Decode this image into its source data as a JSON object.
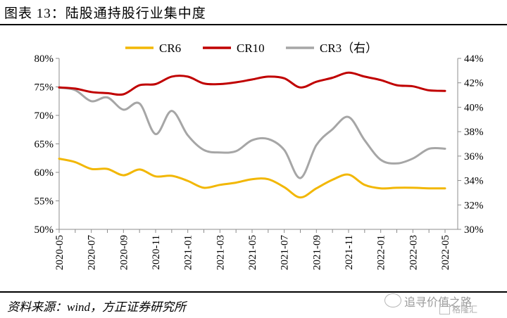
{
  "title": "图表 13：陆股通持股行业集中度",
  "source": "资料来源：wind，方正证券研究所",
  "watermark": {
    "text": "追寻价值之路",
    "brand": "格隆汇",
    "icon": "wechat-icon"
  },
  "colors": {
    "CR6": "#f2b705",
    "CR10": "#c00000",
    "CR3": "#a6a6a6"
  },
  "chart_data": {
    "type": "line",
    "x_ticks": [
      "2020-05",
      "2020-07",
      "2020-09",
      "2020-11",
      "2021-01",
      "2021-03",
      "2021-05",
      "2021-07",
      "2021-09",
      "2021-11",
      "2022-01",
      "2022-03",
      "2022-05"
    ],
    "legend_position": "top",
    "grid": false,
    "y_left": {
      "ticks": [
        "50%",
        "55%",
        "60%",
        "65%",
        "70%",
        "75%",
        "80%"
      ],
      "range": [
        50,
        80
      ],
      "unit": "%"
    },
    "y_right": {
      "ticks": [
        "30%",
        "32%",
        "34%",
        "36%",
        "38%",
        "40%",
        "42%",
        "44%"
      ],
      "range": [
        30,
        44
      ],
      "unit": "%"
    },
    "series": [
      {
        "name": "CR6",
        "axis": "left",
        "x": [
          "2020-05",
          "2020-06",
          "2020-07",
          "2020-08",
          "2020-09",
          "2020-10",
          "2020-11",
          "2020-12",
          "2021-01",
          "2021-02",
          "2021-03",
          "2021-04",
          "2021-05",
          "2021-06",
          "2021-07",
          "2021-08",
          "2021-09",
          "2021-10",
          "2021-11",
          "2021-12",
          "2022-01",
          "2022-02",
          "2022-03",
          "2022-04",
          "2022-05"
        ],
        "values": [
          62.4,
          61.8,
          60.6,
          60.6,
          59.5,
          60.5,
          59.3,
          59.4,
          58.5,
          57.3,
          57.8,
          58.2,
          58.8,
          58.8,
          57.4,
          55.6,
          57.2,
          58.7,
          59.6,
          57.8,
          57.2,
          57.3,
          57.3,
          57.2,
          57.2
        ]
      },
      {
        "name": "CR10",
        "axis": "left",
        "x": [
          "2020-05",
          "2020-06",
          "2020-07",
          "2020-08",
          "2020-09",
          "2020-10",
          "2020-11",
          "2020-12",
          "2021-01",
          "2021-02",
          "2021-03",
          "2021-04",
          "2021-05",
          "2021-06",
          "2021-07",
          "2021-08",
          "2021-09",
          "2021-10",
          "2021-11",
          "2021-12",
          "2022-01",
          "2022-02",
          "2022-03",
          "2022-04",
          "2022-05"
        ],
        "values": [
          74.9,
          74.7,
          74.1,
          73.9,
          73.7,
          75.3,
          75.5,
          76.8,
          76.8,
          75.6,
          75.5,
          75.8,
          76.3,
          76.8,
          76.5,
          74.9,
          75.9,
          76.6,
          77.5,
          76.8,
          76.2,
          75.3,
          75.1,
          74.4,
          74.3
        ]
      },
      {
        "name": "CR3（右）",
        "axis": "right",
        "x": [
          "2020-05",
          "2020-06",
          "2020-07",
          "2020-08",
          "2020-09",
          "2020-10",
          "2020-11",
          "2020-12",
          "2021-01",
          "2021-02",
          "2021-03",
          "2021-04",
          "2021-05",
          "2021-06",
          "2021-07",
          "2021-08",
          "2021-09",
          "2021-10",
          "2021-11",
          "2021-12",
          "2022-01",
          "2022-02",
          "2022-03",
          "2022-04",
          "2022-05"
        ],
        "values": [
          41.6,
          41.4,
          40.5,
          40.8,
          39.8,
          40.3,
          37.8,
          39.7,
          37.7,
          36.5,
          36.3,
          36.4,
          37.3,
          37.4,
          36.5,
          34.2,
          36.9,
          38.2,
          39.2,
          37.3,
          35.7,
          35.4,
          35.8,
          36.6,
          36.6
        ]
      }
    ]
  }
}
